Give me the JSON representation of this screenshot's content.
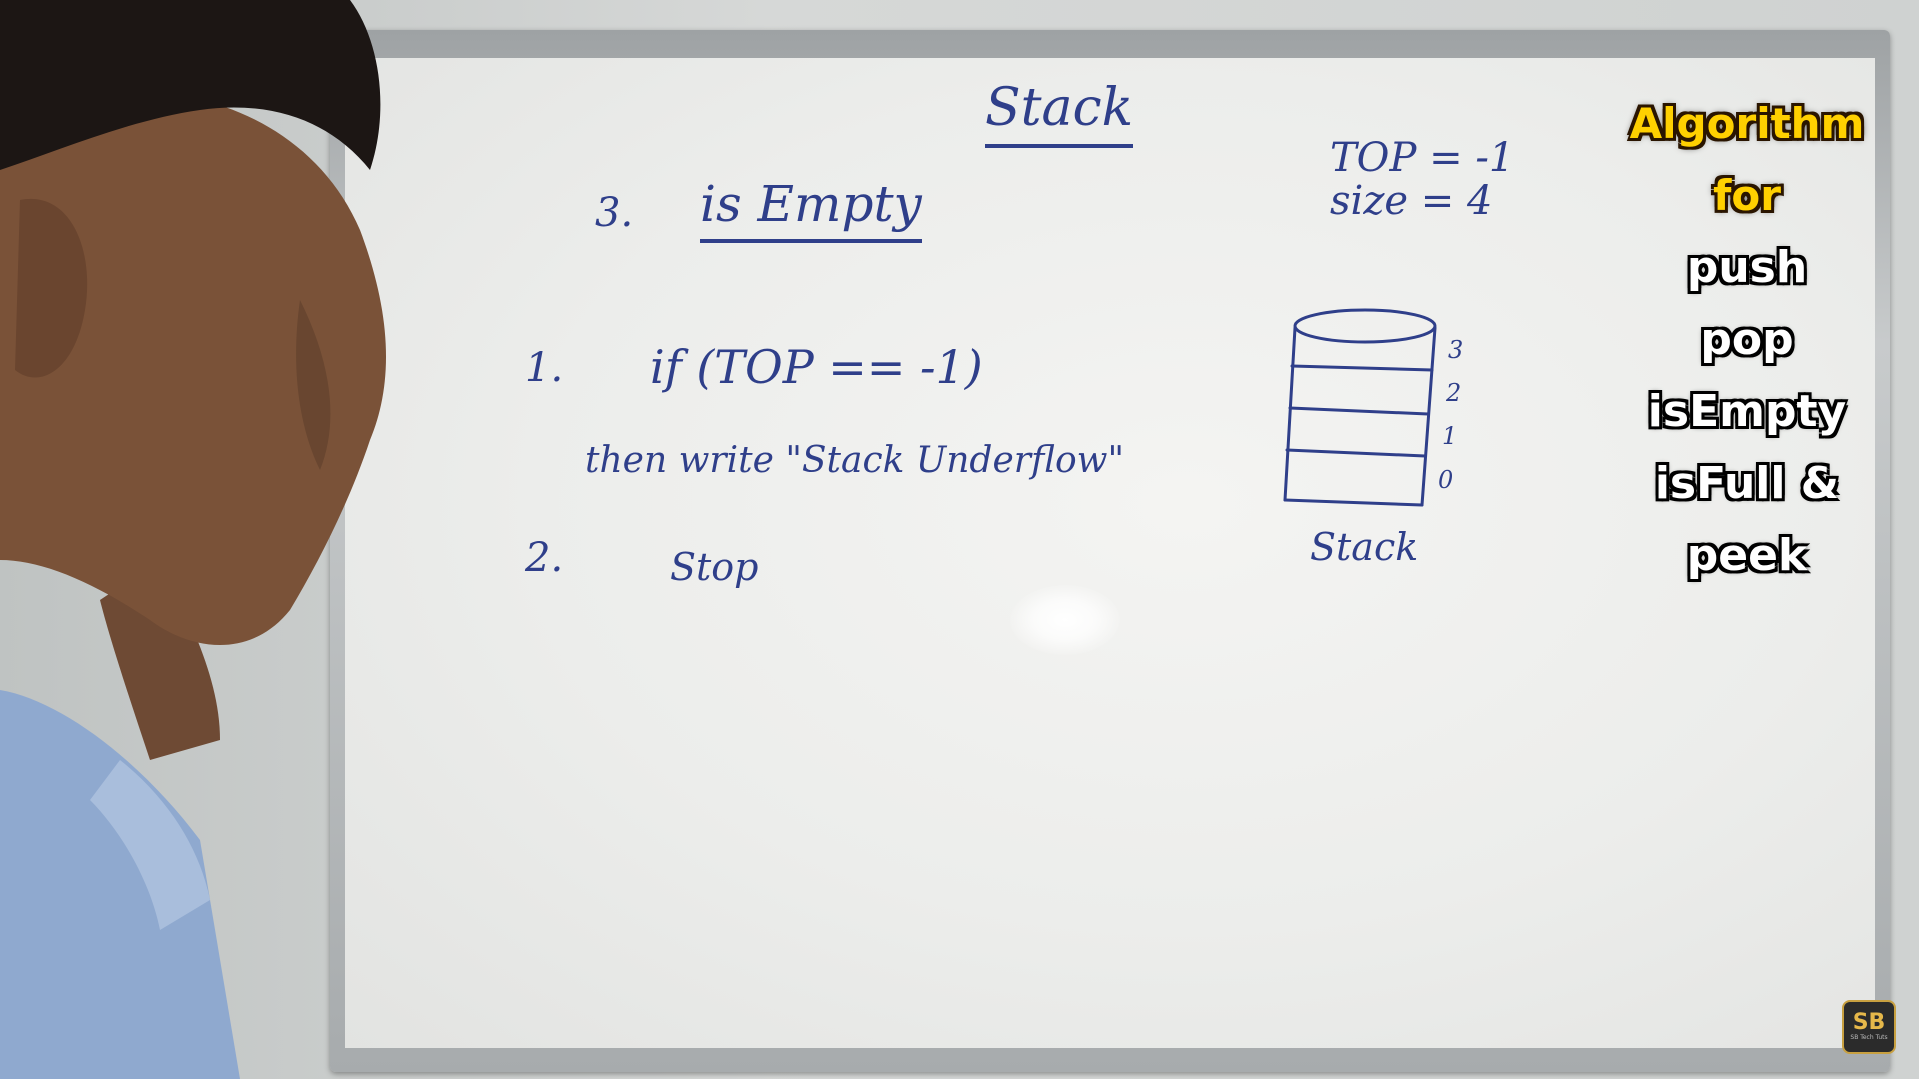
{
  "board": {
    "title": "Stack",
    "section_number": "3.",
    "section_title": "is Empty",
    "top_var": "TOP = -1",
    "size_var": "size = 4",
    "step1_number": "1.",
    "step1_condition": "if (TOP == -1)",
    "step1_then": "then write \"Stack Underflow\"",
    "step2_number": "2.",
    "step2_text": "Stop",
    "stack_indices": [
      "3",
      "2",
      "1",
      "0"
    ],
    "stack_caption": "Stack"
  },
  "overlay": {
    "title": "Algorithm for",
    "items": [
      "push",
      "pop",
      "isEmpty",
      "isFull &",
      "peek"
    ]
  },
  "logo": {
    "text": "SB",
    "subtext": "SB Tech Tuts"
  },
  "colors": {
    "marker": "#2f3f8a",
    "overlay_title": "#ffd000",
    "overlay_items": "#ffffff"
  }
}
